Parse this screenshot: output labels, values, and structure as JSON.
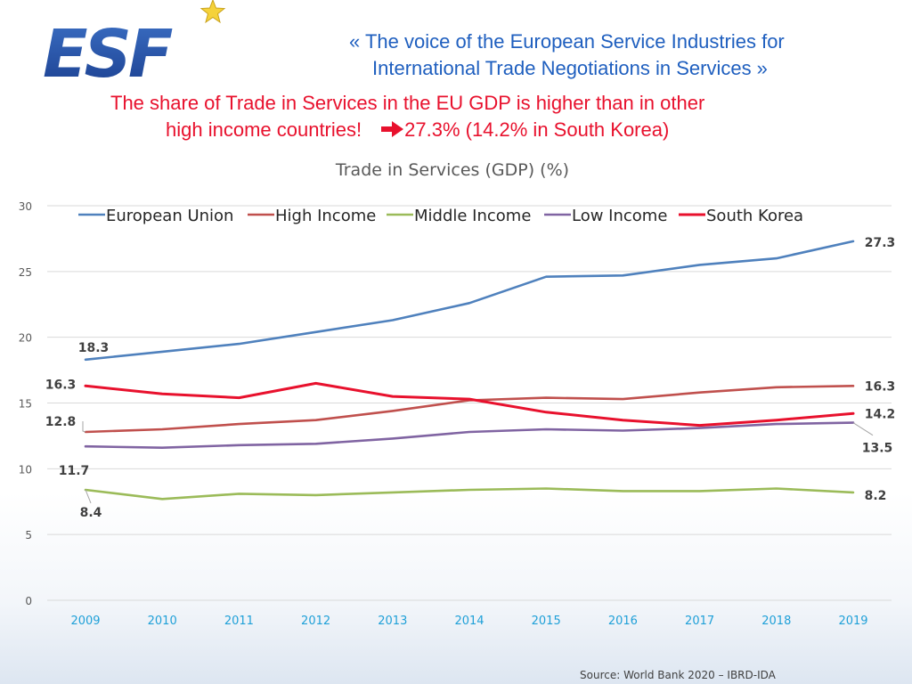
{
  "header": {
    "logo_text": "ESF",
    "tagline_line1": "«  The voice of the European Service Industries for",
    "tagline_line2": "International Trade Negotiations in Services  »",
    "headline_line1": "The share of Trade in Services in the EU GDP is higher than in other",
    "headline_line2_a": "high income countries!",
    "headline_line2_b": "27.3% (14.2% in South Korea)",
    "arrow_icon": "arrow-right-icon"
  },
  "chart_data": {
    "type": "line",
    "title": "Trade in Services (GDP) (%)",
    "x": [
      "2009",
      "2010",
      "2011",
      "2012",
      "2013",
      "2014",
      "2015",
      "2016",
      "2017",
      "2018",
      "2019"
    ],
    "ylim": [
      0,
      30
    ],
    "yticks": [
      "0",
      "5",
      "10",
      "15",
      "20",
      "25",
      "30"
    ],
    "grid": true,
    "legend": "top",
    "series": [
      {
        "name": "European Union",
        "color": "#4f81bd",
        "values": [
          18.3,
          18.9,
          19.5,
          20.4,
          21.3,
          22.6,
          24.6,
          24.7,
          25.5,
          26.0,
          27.3
        ]
      },
      {
        "name": "High Income",
        "color": "#c0504d",
        "values": [
          12.8,
          13.0,
          13.4,
          13.7,
          14.4,
          15.2,
          15.4,
          15.3,
          15.8,
          16.2,
          16.3
        ]
      },
      {
        "name": "Middle Income",
        "color": "#9bbb59",
        "values": [
          8.4,
          7.7,
          8.1,
          8.0,
          8.2,
          8.4,
          8.5,
          8.3,
          8.3,
          8.5,
          8.2
        ]
      },
      {
        "name": "Low Income",
        "color": "#8064a2",
        "values": [
          11.7,
          11.6,
          11.8,
          11.9,
          12.3,
          12.8,
          13.0,
          12.9,
          13.1,
          13.4,
          13.5
        ]
      },
      {
        "name": "South Korea",
        "color": "#e8112d",
        "values": [
          16.3,
          15.7,
          15.4,
          16.5,
          15.5,
          15.3,
          14.3,
          13.7,
          13.3,
          13.7,
          14.2
        ]
      }
    ],
    "data_labels": [
      {
        "series": "European Union",
        "index": 0,
        "text": "18.3"
      },
      {
        "series": "South Korea",
        "index": 0,
        "text": "16.3"
      },
      {
        "series": "High Income",
        "index": 0,
        "text": "12.8"
      },
      {
        "series": "Low Income",
        "index": 0,
        "text": "11.7"
      },
      {
        "series": "Middle Income",
        "index": 0,
        "text": "8.4"
      },
      {
        "series": "European Union",
        "index": 10,
        "text": "27.3"
      },
      {
        "series": "High Income",
        "index": 10,
        "text": "16.3"
      },
      {
        "series": "South Korea",
        "index": 10,
        "text": "14.2"
      },
      {
        "series": "Low Income",
        "index": 10,
        "text": "13.5"
      },
      {
        "series": "Middle Income",
        "index": 10,
        "text": "8.2"
      }
    ]
  },
  "footer": {
    "source": "Source: World Bank 2020 – IBRD-IDA"
  }
}
